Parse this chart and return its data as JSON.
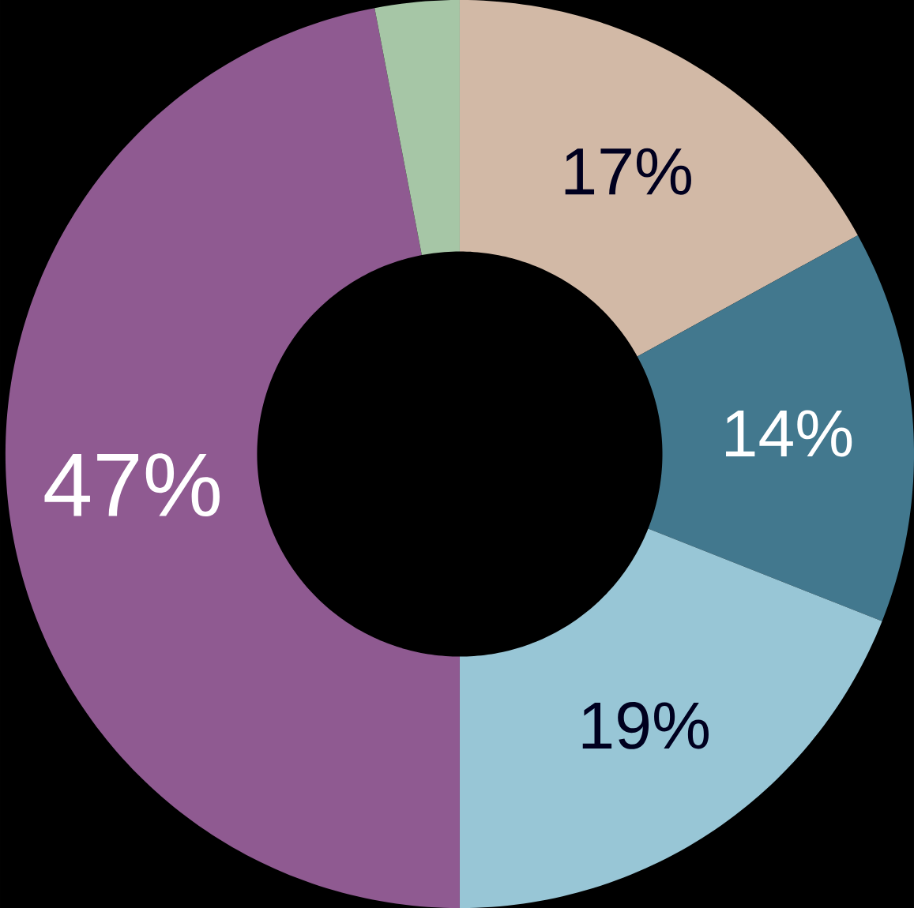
{
  "chart_data": {
    "type": "donut",
    "categories": [
      null,
      null,
      null,
      null,
      null
    ],
    "values": [
      17,
      14,
      19,
      47,
      3
    ],
    "colors": [
      "#d2b9a6",
      "#42788e",
      "#98c6d6",
      "#8f5a91",
      "#a6c6a6"
    ],
    "value_labels": [
      "17%",
      "14%",
      "19%",
      "47%",
      null
    ]
  }
}
